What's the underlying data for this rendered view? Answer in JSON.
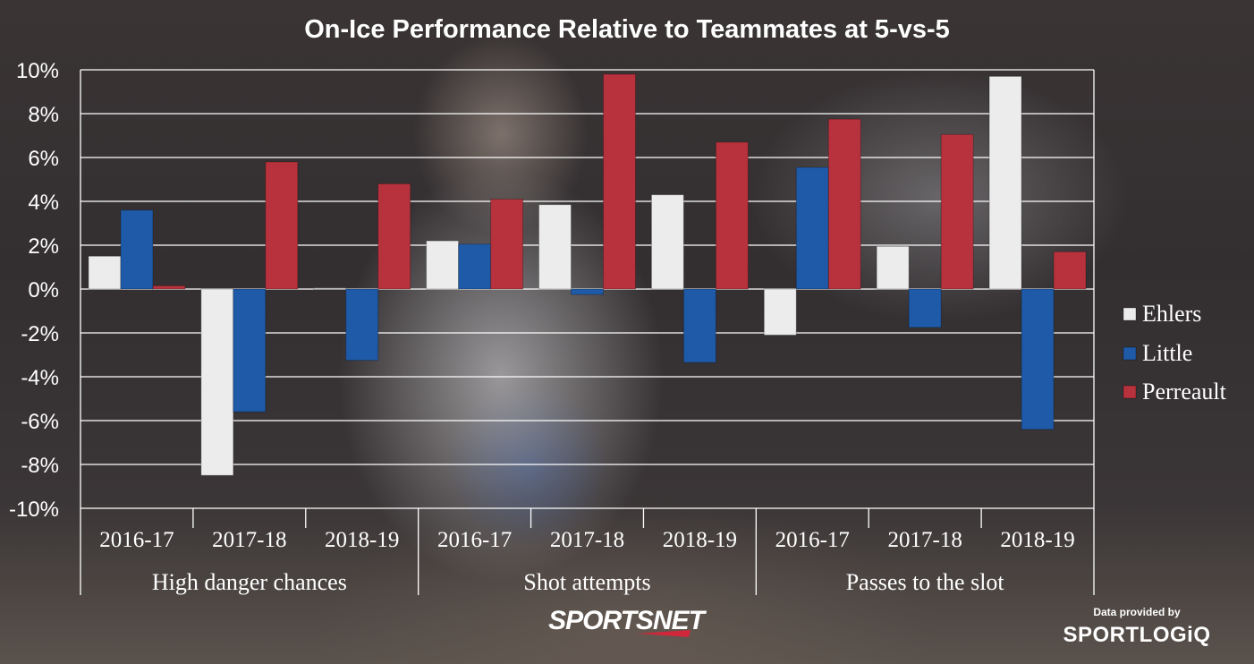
{
  "chart_data": {
    "type": "bar",
    "title": "On-Ice Performance Relative to Teammates at 5-vs-5",
    "ylim": [
      -10,
      10
    ],
    "yticks": [
      10,
      8,
      6,
      4,
      2,
      0,
      -2,
      -4,
      -6,
      -8,
      -10
    ],
    "ytick_labels": [
      "10%",
      "8%",
      "6%",
      "4%",
      "2%",
      "0%",
      "-2%",
      "-4%",
      "-6%",
      "-8%",
      "-10%"
    ],
    "grid": true,
    "legend_position": "right",
    "categories": [
      "2016-17",
      "2017-18",
      "2018-19",
      "2016-17",
      "2017-18",
      "2018-19",
      "2016-17",
      "2017-18",
      "2018-19"
    ],
    "groups": [
      {
        "label": "High danger chances",
        "span": 3
      },
      {
        "label": "Shot attempts",
        "span": 3
      },
      {
        "label": "Passes to the slot",
        "span": 3
      }
    ],
    "series": [
      {
        "name": "Ehlers",
        "color": "#ececec",
        "values": [
          1.5,
          -8.5,
          0.05,
          2.2,
          3.85,
          4.3,
          -2.1,
          1.95,
          9.7
        ]
      },
      {
        "name": "Little",
        "color": "#1f5aa8",
        "values": [
          3.6,
          -5.6,
          -3.25,
          2.05,
          -0.25,
          -3.35,
          5.55,
          -1.75,
          -6.4
        ]
      },
      {
        "name": "Perreault",
        "color": "#b8323d",
        "values": [
          0.15,
          5.8,
          4.8,
          4.1,
          9.8,
          6.7,
          7.75,
          7.05,
          1.7
        ]
      }
    ]
  },
  "branding": {
    "network": "SPORTSNET",
    "credit_line": "Data provided by",
    "credit_brand": "SPORTLOGiQ"
  }
}
